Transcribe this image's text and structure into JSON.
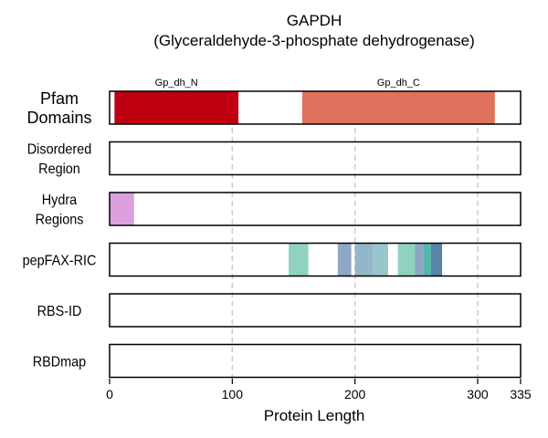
{
  "chart_data": {
    "type": "bar",
    "title": "GAPDH",
    "subtitle": "(Glyceraldehyde-3-phosphate dehydrogenase)",
    "xlabel": "Protein Length",
    "xlim": [
      0,
      335
    ],
    "xticks": [
      0,
      100,
      200,
      300,
      335
    ],
    "grid": "vertical dashed at 100, 200, 300",
    "tracks": [
      {
        "label": [
          "Pfam",
          "Domains"
        ],
        "features": [
          {
            "name": "Gp_dh_N",
            "start": 4,
            "end": 105,
            "color": "#be0011"
          },
          {
            "name": "Gp_dh_C",
            "start": 157,
            "end": 314,
            "color": "#de725c"
          }
        ]
      },
      {
        "label": [
          "Disordered",
          "Region"
        ],
        "features": []
      },
      {
        "label": [
          "Hydra",
          "Regions"
        ],
        "features": [
          {
            "start": 0,
            "end": 20,
            "color": "#dda0de"
          }
        ]
      },
      {
        "label": [
          "pepFAX-RIC"
        ],
        "features": [
          {
            "start": 146,
            "end": 162,
            "color": "#8fd2c0"
          },
          {
            "start": 186,
            "end": 197,
            "color": "#8fa8c4"
          },
          {
            "start": 200,
            "end": 215,
            "color": "#93b7c8"
          },
          {
            "start": 215,
            "end": 227,
            "color": "#99c6cc"
          },
          {
            "start": 235,
            "end": 249,
            "color": "#8fd2c0"
          },
          {
            "start": 249,
            "end": 256,
            "color": "#8aa6c4"
          },
          {
            "start": 256,
            "end": 262,
            "color": "#55b6aa"
          },
          {
            "start": 262,
            "end": 271,
            "color": "#5586a8"
          }
        ]
      },
      {
        "label": [
          "RBS-ID"
        ],
        "features": []
      },
      {
        "label": [
          "RBDmap"
        ],
        "features": []
      }
    ]
  }
}
